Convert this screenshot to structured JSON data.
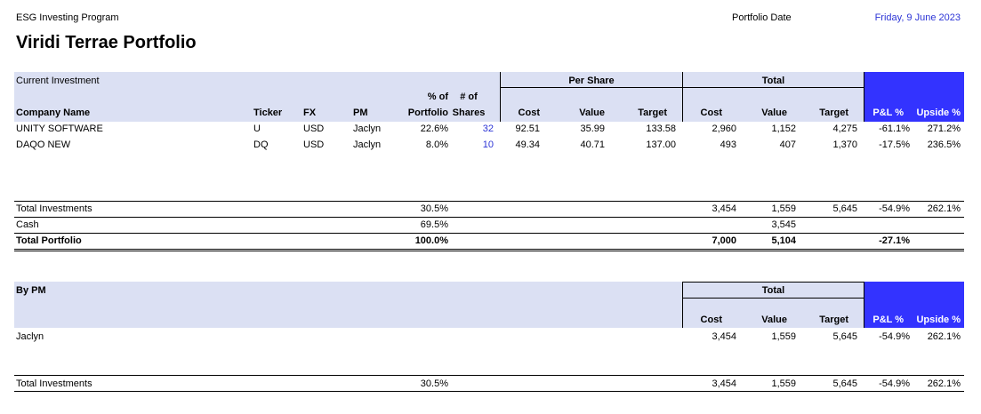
{
  "header": {
    "program": "ESG Investing Program",
    "title": "Viridi Terrae Portfolio",
    "portfolio_date_label": "Portfolio Date",
    "portfolio_date": "Friday, 9 June 2023"
  },
  "investments": {
    "section_label": "Current Investment",
    "group_per_share": "Per Share",
    "group_total": "Total",
    "pct_top": "% of",
    "pct_bottom": "Portfolio",
    "shares_top": "# of",
    "shares_bottom": "Shares",
    "columns": {
      "company": "Company Name",
      "ticker": "Ticker",
      "fx": "FX",
      "pm": "PM",
      "ps_cost": "Cost",
      "ps_value": "Value",
      "ps_target": "Target",
      "t_cost": "Cost",
      "t_value": "Value",
      "t_target": "Target",
      "pl": "P&L %",
      "upside": "Upside %"
    },
    "rows": [
      {
        "company": "UNITY SOFTWARE",
        "ticker": "U",
        "fx": "USD",
        "pm": "Jaclyn",
        "pct": "22.6%",
        "shares": "32",
        "ps_cost": "92.51",
        "ps_value": "35.99",
        "ps_target": "133.58",
        "t_cost": "2,960",
        "t_value": "1,152",
        "t_target": "4,275",
        "pl": "-61.1%",
        "upside": "271.2%"
      },
      {
        "company": "DAQO NEW",
        "ticker": "DQ",
        "fx": "USD",
        "pm": "Jaclyn",
        "pct": "8.0%",
        "shares": "10",
        "ps_cost": "49.34",
        "ps_value": "40.71",
        "ps_target": "137.00",
        "t_cost": "493",
        "t_value": "407",
        "t_target": "1,370",
        "pl": "-17.5%",
        "upside": "236.5%"
      }
    ]
  },
  "summary": {
    "total_investments": {
      "label": "Total Investments",
      "pct": "30.5%",
      "cost": "3,454",
      "value": "1,559",
      "target": "5,645",
      "pl": "-54.9%",
      "upside": "262.1%"
    },
    "cash": {
      "label": "Cash",
      "pct": "69.5%",
      "value": "3,545"
    },
    "total_portfolio": {
      "label": "Total Portfolio",
      "pct": "100.0%",
      "cost": "7,000",
      "value": "5,104",
      "pl": "-27.1%"
    }
  },
  "by_pm": {
    "section_label": "By PM",
    "group_total": "Total",
    "columns": {
      "cost": "Cost",
      "value": "Value",
      "target": "Target",
      "pl": "P&L %",
      "upside": "Upside %"
    },
    "rows": [
      {
        "name": "Jaclyn",
        "cost": "3,454",
        "value": "1,559",
        "target": "5,645",
        "pl": "-54.9%",
        "upside": "262.1%"
      }
    ],
    "total": {
      "label": "Total Investments",
      "pct": "30.5%",
      "cost": "3,454",
      "value": "1,559",
      "target": "5,645",
      "pl": "-54.9%",
      "upside": "262.1%"
    }
  },
  "colors": {
    "header_band": "#dbe0f3",
    "accent_blue": "#3333ff",
    "link_blue": "#2d35d6"
  }
}
